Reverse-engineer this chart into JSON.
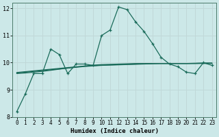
{
  "xlabel": "Humidex (Indice chaleur)",
  "background_color": "#cce8e8",
  "grid_color": "#c0d8d8",
  "line_color": "#1a6b5a",
  "x_values": [
    0,
    1,
    2,
    3,
    4,
    5,
    6,
    7,
    8,
    9,
    10,
    11,
    12,
    13,
    14,
    15,
    16,
    17,
    18,
    19,
    20,
    21,
    22,
    23
  ],
  "main_line": [
    8.2,
    8.85,
    9.6,
    9.6,
    10.5,
    10.3,
    9.6,
    9.95,
    9.95,
    9.9,
    11.0,
    11.2,
    12.05,
    11.95,
    11.5,
    11.15,
    10.7,
    10.2,
    9.95,
    9.85,
    9.65,
    9.6,
    10.0,
    9.9
  ],
  "line2": [
    9.6,
    9.62,
    9.65,
    9.68,
    9.72,
    9.76,
    9.8,
    9.84,
    9.88,
    9.91,
    9.93,
    9.94,
    9.95,
    9.96,
    9.97,
    9.97,
    9.97,
    9.97,
    9.97,
    9.97,
    9.97,
    9.97,
    9.97,
    9.97
  ],
  "line3": [
    9.62,
    9.65,
    9.68,
    9.71,
    9.74,
    9.77,
    9.8,
    9.83,
    9.86,
    9.88,
    9.9,
    9.91,
    9.92,
    9.93,
    9.94,
    9.95,
    9.96,
    9.97,
    9.97,
    9.97,
    9.97,
    9.97,
    9.98,
    9.98
  ],
  "line4": [
    9.64,
    9.67,
    9.7,
    9.73,
    9.76,
    9.79,
    9.82,
    9.85,
    9.87,
    9.89,
    9.91,
    9.92,
    9.93,
    9.94,
    9.95,
    9.96,
    9.97,
    9.97,
    9.97,
    9.97,
    9.97,
    9.98,
    9.99,
    9.99
  ],
  "ylim": [
    8.0,
    12.2
  ],
  "xlim": [
    -0.5,
    23.5
  ],
  "yticks": [
    8,
    9,
    10,
    11,
    12
  ],
  "xticks": [
    0,
    1,
    2,
    3,
    4,
    5,
    6,
    7,
    8,
    9,
    10,
    11,
    12,
    13,
    14,
    15,
    16,
    17,
    18,
    19,
    20,
    21,
    22,
    23
  ]
}
